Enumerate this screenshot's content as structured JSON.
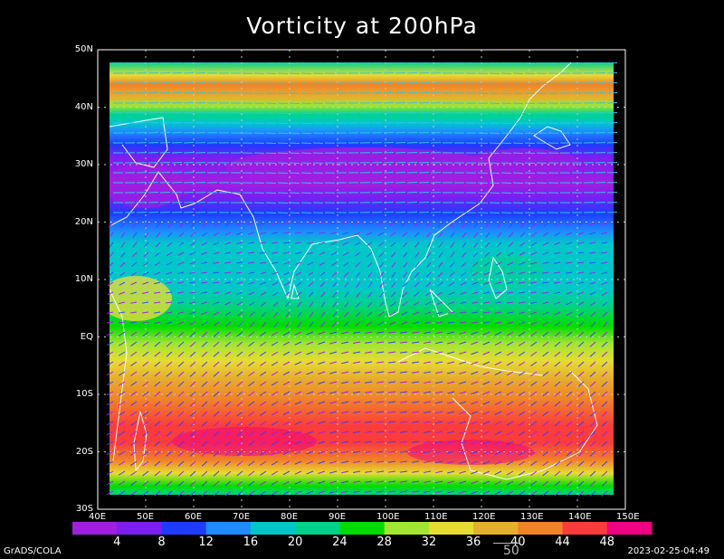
{
  "title": "Vorticity at 200hPa",
  "lat_labels": [
    "50N",
    "40N",
    "30N",
    "20N",
    "10N",
    "EQ",
    "10S",
    "20S",
    "30S"
  ],
  "lon_labels": [
    "40E",
    "50E",
    "60E",
    "70E",
    "80E",
    "90E",
    "100E",
    "110E",
    "120E",
    "130E",
    "140E",
    "150E"
  ],
  "colorbar": {
    "labels": [
      "4",
      "8",
      "12",
      "16",
      "20",
      "24",
      "28",
      "32",
      "36",
      "40",
      "44",
      "48"
    ],
    "colors": [
      "#a01ee0",
      "#7c1ef0",
      "#1e3cff",
      "#1e8cff",
      "#00c8c8",
      "#00d28c",
      "#00dc00",
      "#a0e632",
      "#e6dc32",
      "#e6af2d",
      "#f08228",
      "#fa3c3c",
      "#f00082"
    ]
  },
  "reference_vector": "50",
  "credit": "GrADS/COLA",
  "timestamp": "2023-02-25-04:49"
}
